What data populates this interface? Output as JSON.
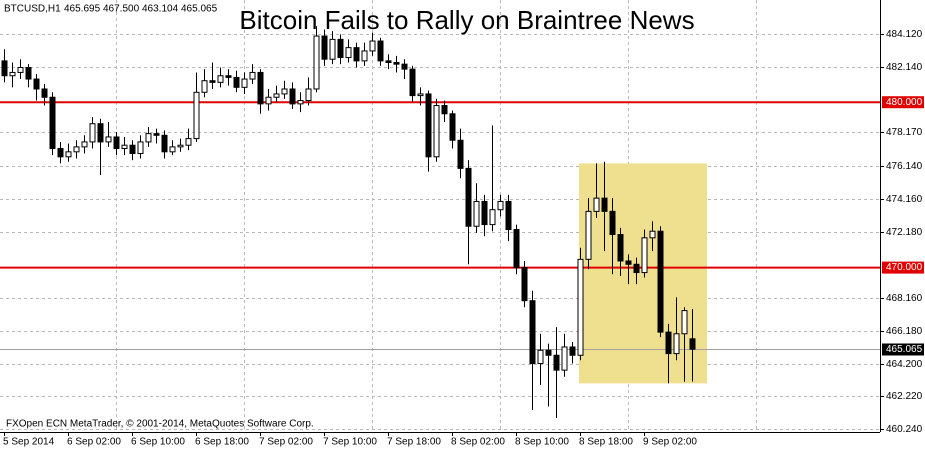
{
  "chart_data": {
    "type": "candlestick",
    "title": "Bitcoin Fails to Rally on Braintree News",
    "symbol": "BTCUSD,H1",
    "header_values": [
      "465.695",
      "467.500",
      "463.104",
      "465.065"
    ],
    "footer": "FXOpen ECN MetaTrader, © 2001-2014, MetaQuotes Software Corp.",
    "categories": [
      "5 Sep 2014",
      null,
      null,
      null,
      null,
      null,
      null,
      null,
      "6 Sep 02:00",
      null,
      null,
      null,
      null,
      null,
      null,
      null,
      "6 Sep 10:00",
      null,
      null,
      null,
      null,
      null,
      null,
      null,
      "6 Sep 18:00",
      null,
      null,
      null,
      null,
      null,
      null,
      null,
      "7 Sep 02:00",
      null,
      null,
      null,
      null,
      null,
      null,
      null,
      "7 Sep 10:00",
      null,
      null,
      null,
      null,
      null,
      null,
      null,
      "7 Sep 18:00",
      null,
      null,
      null,
      null,
      null,
      null,
      null,
      "8 Sep 02:00",
      null,
      null,
      null,
      null,
      null,
      null,
      null,
      "8 Sep 10:00",
      null,
      null,
      null,
      null,
      null,
      null,
      null,
      "8 Sep 18:00",
      null,
      null,
      null,
      null,
      null,
      null,
      null,
      "9 Sep 02:00",
      null,
      null,
      null,
      null,
      null,
      null
    ],
    "open": [
      482.5,
      481.6,
      481.8,
      482.1,
      481.4,
      480.8,
      480.3,
      477.2,
      476.7,
      477.0,
      477.3,
      477.6,
      478.7,
      477.6,
      477.9,
      477.2,
      477.4,
      476.9,
      477.6,
      478.1,
      478.0,
      477.0,
      477.3,
      477.4,
      477.8,
      480.6,
      481.3,
      481.2,
      481.6,
      481.5,
      480.9,
      481.4,
      481.8,
      479.9,
      480.3,
      480.5,
      480.8,
      479.9,
      480.1,
      480.8,
      484.0,
      482.6,
      483.8,
      482.7,
      483.3,
      482.5,
      483.1,
      483.7,
      482.5,
      482.4,
      482.3,
      482.0,
      480.4,
      480.5,
      476.7,
      479.8,
      479.3,
      477.7,
      476.0,
      472.5,
      474.0,
      472.6,
      473.5,
      474.0,
      472.3,
      470.0,
      468.0,
      464.2,
      465.0,
      464.7,
      463.8,
      465.2,
      464.7,
      470.5,
      473.4,
      474.2,
      473.4,
      472.0,
      470.4,
      470.2,
      469.7,
      471.8,
      472.2,
      466.1,
      464.8,
      466.0,
      465.695
    ],
    "high": [
      483.2,
      482.4,
      482.6,
      482.3,
      481.7,
      481.1,
      480.6,
      477.6,
      477.5,
      477.7,
      478.0,
      479.1,
      479.0,
      478.8,
      478.2,
      477.9,
      477.7,
      478.0,
      478.5,
      478.4,
      478.3,
      477.7,
      477.8,
      478.4,
      481.8,
      482.0,
      482.4,
      482.1,
      482.0,
      481.9,
      481.8,
      482.3,
      482.0,
      480.8,
      481.0,
      481.3,
      481.2,
      480.6,
      481.5,
      484.6,
      484.4,
      484.3,
      484.1,
      483.8,
      483.6,
      483.6,
      484.2,
      483.9,
      482.9,
      482.8,
      482.6,
      482.2,
      480.9,
      480.7,
      480.2,
      480.1,
      479.5,
      478.4,
      476.5,
      475.1,
      474.4,
      478.6,
      474.4,
      474.4,
      472.6,
      470.4,
      468.6,
      466.0,
      465.4,
      466.4,
      466.0,
      465.5,
      471.2,
      474.2,
      476.3,
      476.4,
      474.2,
      472.4,
      470.8,
      470.6,
      472.3,
      472.8,
      472.5,
      466.6,
      468.2,
      467.6,
      467.5
    ],
    "low": [
      481.2,
      480.9,
      481.4,
      480.9,
      480.1,
      479.8,
      476.8,
      476.3,
      476.4,
      476.6,
      476.9,
      477.2,
      475.6,
      477.3,
      476.8,
      476.8,
      476.5,
      476.6,
      477.3,
      477.5,
      476.6,
      476.8,
      477.0,
      477.1,
      477.6,
      480.3,
      480.8,
      480.9,
      481.0,
      480.6,
      480.5,
      481.1,
      479.3,
      479.5,
      480.0,
      480.2,
      479.6,
      479.4,
      479.8,
      480.6,
      482.2,
      482.3,
      482.3,
      482.4,
      482.1,
      482.2,
      482.8,
      482.2,
      482.0,
      481.8,
      481.4,
      480.0,
      479.8,
      475.8,
      476.4,
      478.8,
      477.2,
      475.4,
      470.2,
      472.1,
      471.9,
      472.2,
      473.1,
      471.6,
      469.6,
      467.6,
      461.4,
      462.9,
      461.6,
      460.9,
      463.4,
      464.2,
      464.4,
      469.9,
      473.0,
      471.0,
      469.6,
      469.5,
      469.0,
      469.0,
      469.4,
      471.0,
      465.8,
      463.0,
      464.4,
      463.1,
      463.104
    ],
    "close": [
      481.6,
      481.8,
      482.1,
      481.4,
      480.8,
      480.3,
      477.2,
      476.7,
      477.0,
      477.3,
      477.6,
      478.7,
      477.6,
      477.9,
      477.2,
      477.4,
      476.9,
      477.6,
      478.1,
      478.0,
      477.0,
      477.3,
      477.4,
      477.8,
      480.6,
      481.3,
      481.2,
      481.6,
      481.5,
      480.9,
      481.4,
      481.8,
      479.9,
      480.3,
      480.5,
      480.8,
      479.9,
      480.1,
      480.8,
      484.0,
      482.6,
      483.8,
      482.7,
      483.3,
      482.5,
      483.1,
      483.7,
      482.5,
      482.4,
      482.3,
      482.0,
      480.4,
      480.5,
      476.7,
      479.8,
      479.3,
      477.7,
      476.0,
      472.5,
      474.0,
      472.6,
      473.5,
      474.0,
      472.3,
      470.0,
      468.0,
      464.2,
      465.0,
      464.7,
      463.8,
      465.2,
      464.7,
      470.5,
      473.4,
      474.2,
      473.4,
      472.0,
      470.4,
      470.2,
      469.7,
      471.8,
      472.2,
      466.1,
      464.8,
      466.0,
      467.4,
      465.065
    ],
    "up_color": "#ffffff",
    "down_color": "#000000",
    "wick_color": "#000000",
    "ylim": [
      460.06,
      486.18
    ],
    "yticks": [
      {
        "value": 484.12,
        "label": "484.120"
      },
      {
        "value": 482.14,
        "label": "482.140"
      },
      {
        "value": 478.17,
        "label": "478.170"
      },
      {
        "value": 476.14,
        "label": "476.140"
      },
      {
        "value": 474.16,
        "label": "474.160"
      },
      {
        "value": 472.18,
        "label": "472.180"
      },
      {
        "value": 468.16,
        "label": "468.160"
      },
      {
        "value": 466.18,
        "label": "466.180"
      },
      {
        "value": 464.2,
        "label": "464.200"
      },
      {
        "value": 462.22,
        "label": "462.220"
      },
      {
        "value": 460.24,
        "label": "460.240"
      }
    ],
    "grid": true,
    "hlines": [
      {
        "value": 480,
        "label": "480.000",
        "color": "#e00000"
      },
      {
        "value": 470,
        "label": "470.000",
        "color": "#e00000"
      }
    ],
    "current_price": {
      "value": 465.065,
      "label": "465.065",
      "color": "#a0a0a0"
    },
    "highlight": {
      "range": [
        463.0,
        476.3
      ],
      "color": "#efe08f"
    }
  }
}
